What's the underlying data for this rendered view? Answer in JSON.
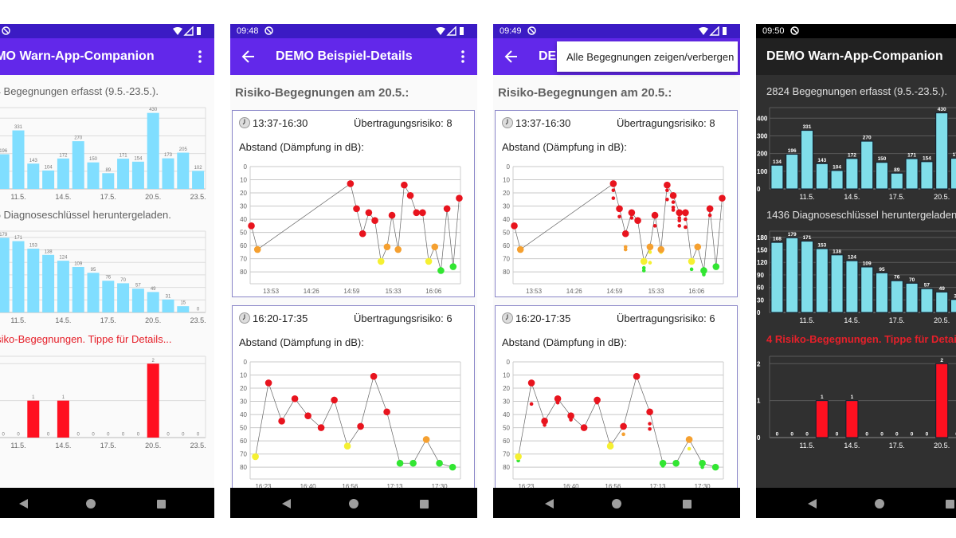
{
  "colors": {
    "bar": "#80deff",
    "bar_dark": "#80deea",
    "risk_bar": "#ff1020",
    "red": "#e8141e",
    "orange": "#f5a030",
    "yellow": "#f5f032",
    "green": "#32e632",
    "accent": "#6228ea"
  },
  "screens": [
    {
      "title": "DEMO Warn-App-Companion",
      "theme": "light"
    },
    {
      "status_time": "09:48",
      "title": "DEMO Beispiel-Details",
      "theme": "light"
    },
    {
      "status_time": "09:49",
      "title": "DEMO Beispiel-Details",
      "theme": "light",
      "popup_item": "Alle Begegnungen zeigen/verbergen"
    },
    {
      "status_time": "09:50",
      "title": "DEMO Warn-App-Companion",
      "theme": "dark"
    }
  ],
  "overview": {
    "encounters_title": "2824 Begegnungen erfasst (9.5.-23.5.).",
    "keys_title": "1436 Diagnoseschlüssel heruntergeladen.",
    "risk_title": "4 Risiko-Begegnungen. Tippe für Details..."
  },
  "detail": {
    "heading": "Risiko-Begegnungen am 20.5.:",
    "distance_label": "Abstand (Dämpfung in dB):",
    "cards": [
      {
        "time": "13:37-16:30",
        "risk": "Übertragungsrisiko: 8"
      },
      {
        "time": "16:20-17:35",
        "risk": "Übertragungsrisiko: 6"
      }
    ]
  },
  "chart_data": [
    {
      "type": "bar",
      "categories": [
        "9.5.",
        "10.5.",
        "11.5.",
        "12.5.",
        "13.5.",
        "14.5.",
        "15.5.",
        "16.5.",
        "17.5.",
        "18.5.",
        "19.5.",
        "20.5.",
        "21.5.",
        "22.5.",
        "23.5."
      ],
      "values": [
        134,
        196,
        331,
        143,
        104,
        172,
        270,
        150,
        89,
        171,
        154,
        430,
        173,
        205,
        102
      ],
      "xticks": [
        "11.5.",
        "14.5.",
        "17.5.",
        "20.5.",
        "23.5."
      ],
      "yticks": [
        0,
        100,
        200,
        300,
        400
      ],
      "ylim": [
        0,
        460
      ],
      "grid": true
    },
    {
      "type": "bar",
      "categories": [
        "9.5.",
        "10.5.",
        "11.5.",
        "12.5.",
        "13.5.",
        "14.5.",
        "15.5.",
        "16.5.",
        "17.5.",
        "18.5.",
        "19.5.",
        "20.5.",
        "21.5.",
        "22.5.",
        "23.5."
      ],
      "values": [
        168,
        179,
        171,
        153,
        138,
        124,
        109,
        95,
        76,
        70,
        57,
        49,
        31,
        15,
        0
      ],
      "xticks": [
        "11.5.",
        "14.5.",
        "17.5.",
        "20.5.",
        "23.5."
      ],
      "yticks": [
        0,
        30,
        60,
        90,
        120,
        150,
        180
      ],
      "ylim": [
        0,
        195
      ],
      "grid": true
    },
    {
      "type": "bar",
      "categories": [
        "9.5.",
        "10.5.",
        "11.5.",
        "12.5.",
        "13.5.",
        "14.5.",
        "15.5.",
        "16.5.",
        "17.5.",
        "18.5.",
        "19.5.",
        "20.5.",
        "21.5.",
        "22.5.",
        "23.5."
      ],
      "values": [
        0,
        0,
        0,
        1,
        0,
        1,
        0,
        0,
        0,
        0,
        0,
        2,
        0,
        0,
        0
      ],
      "xticks": [
        "11.5.",
        "14.5.",
        "17.5.",
        "20.5.",
        "23.5."
      ],
      "yticks": [
        0,
        1,
        2
      ],
      "ylim": [
        0,
        2.2
      ],
      "grid": true
    },
    {
      "type": "line",
      "x_range": [
        "13:36",
        "16:28"
      ],
      "xticks": [
        "13:53",
        "14:26",
        "14:59",
        "15:33",
        "16:06"
      ],
      "yticks": [
        0,
        10,
        20,
        30,
        40,
        50,
        60,
        70,
        80
      ],
      "ylim": [
        0,
        89
      ],
      "y_reversed": true,
      "grid": true,
      "points": [
        [
          "13:37",
          45,
          "red"
        ],
        [
          "13:42",
          63,
          "orange"
        ],
        [
          "14:58",
          13,
          "red"
        ],
        [
          "15:03",
          32,
          "red"
        ],
        [
          "15:08",
          51,
          "red"
        ],
        [
          "15:13",
          35,
          "red"
        ],
        [
          "15:18",
          41,
          "red"
        ],
        [
          "15:23",
          72,
          "yellow"
        ],
        [
          "15:28",
          61,
          "orange"
        ],
        [
          "15:32",
          37,
          "red"
        ],
        [
          "15:37",
          63,
          "orange"
        ],
        [
          "15:42",
          14,
          "red"
        ],
        [
          "15:47",
          22,
          "red"
        ],
        [
          "15:52",
          35,
          "red"
        ],
        [
          "15:57",
          35,
          "red"
        ],
        [
          "16:02",
          72,
          "yellow"
        ],
        [
          "16:07",
          61,
          "orange"
        ],
        [
          "16:12",
          79,
          "green"
        ],
        [
          "16:17",
          32,
          "red"
        ],
        [
          "16:22",
          76,
          "green"
        ],
        [
          "16:27",
          24,
          "red"
        ]
      ],
      "all_encounters": [
        [
          "14:58",
          18,
          "red"
        ],
        [
          "14:58",
          24,
          "red"
        ],
        [
          "15:03",
          38,
          "red"
        ],
        [
          "15:08",
          61,
          "orange"
        ],
        [
          "15:08",
          63,
          "orange"
        ],
        [
          "15:13",
          39,
          "red"
        ],
        [
          "15:23",
          77,
          "green"
        ],
        [
          "15:23",
          79,
          "green"
        ],
        [
          "15:28",
          65,
          "yellow"
        ],
        [
          "15:28",
          73,
          "yellow"
        ],
        [
          "15:32",
          45,
          "red"
        ],
        [
          "15:37",
          65,
          "yellow"
        ],
        [
          "15:42",
          18,
          "red"
        ],
        [
          "15:42",
          25,
          "red"
        ],
        [
          "15:47",
          27,
          "red"
        ],
        [
          "15:47",
          31,
          "red"
        ],
        [
          "15:47",
          33,
          "red"
        ],
        [
          "15:52",
          39,
          "red"
        ],
        [
          "15:52",
          41,
          "red"
        ],
        [
          "15:52",
          45,
          "red"
        ],
        [
          "15:57",
          40,
          "red"
        ],
        [
          "15:57",
          46,
          "red"
        ],
        [
          "16:02",
          78,
          "green"
        ],
        [
          "16:12",
          82,
          "green"
        ],
        [
          "16:17",
          37,
          "red"
        ]
      ]
    },
    {
      "type": "line",
      "x_range": [
        "16:18",
        "17:38"
      ],
      "xticks": [
        "16:23",
        "16:40",
        "16:56",
        "17:13",
        "17:30"
      ],
      "yticks": [
        0,
        10,
        20,
        30,
        40,
        50,
        60,
        70,
        80
      ],
      "ylim": [
        0,
        89
      ],
      "y_reversed": true,
      "grid": true,
      "points": [
        [
          "16:20",
          72,
          "yellow"
        ],
        [
          "16:25",
          16,
          "red"
        ],
        [
          "16:30",
          45,
          "red"
        ],
        [
          "16:35",
          28,
          "red"
        ],
        [
          "16:40",
          41,
          "red"
        ],
        [
          "16:45",
          50,
          "red"
        ],
        [
          "16:50",
          29,
          "red"
        ],
        [
          "16:55",
          64,
          "yellow"
        ],
        [
          "17:00",
          49,
          "red"
        ],
        [
          "17:05",
          11,
          "red"
        ],
        [
          "17:10",
          38,
          "red"
        ],
        [
          "17:15",
          77,
          "green"
        ],
        [
          "17:20",
          77,
          "green"
        ],
        [
          "17:25",
          59,
          "orange"
        ],
        [
          "17:30",
          77,
          "green"
        ],
        [
          "17:35",
          80,
          "green"
        ]
      ],
      "all_encounters": [
        [
          "16:20",
          75,
          "green"
        ],
        [
          "16:25",
          32,
          "red"
        ],
        [
          "16:30",
          48,
          "red"
        ],
        [
          "16:35",
          31,
          "red"
        ],
        [
          "16:40",
          44,
          "red"
        ],
        [
          "16:45",
          51,
          "red"
        ],
        [
          "16:50",
          31,
          "red"
        ],
        [
          "16:55",
          62,
          "orange"
        ],
        [
          "17:00",
          55,
          "orange"
        ],
        [
          "17:10",
          47,
          "red"
        ],
        [
          "17:10",
          51,
          "red"
        ],
        [
          "17:15",
          79,
          "green"
        ],
        [
          "17:25",
          66,
          "yellow"
        ],
        [
          "17:30",
          80,
          "green"
        ]
      ]
    }
  ]
}
